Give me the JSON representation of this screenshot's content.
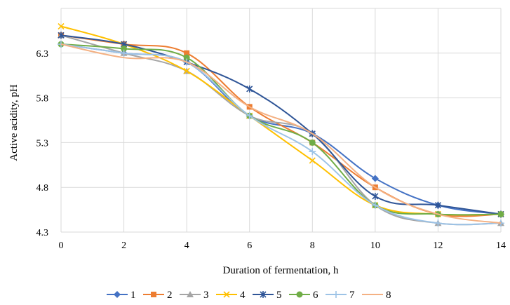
{
  "chart_data": {
    "type": "line",
    "title": "",
    "xlabel": "Duration of fermentation, h",
    "ylabel": "Active acidity, pH",
    "x": [
      0,
      2,
      4,
      6,
      8,
      10,
      12,
      14
    ],
    "xlim": [
      0,
      14
    ],
    "ylim": [
      4.3,
      6.8
    ],
    "x_ticks": [
      "0",
      "2",
      "4",
      "6",
      "8",
      "10",
      "12",
      "14"
    ],
    "y_ticks": [
      "4.3",
      "4.8",
      "5.3",
      "5.8",
      "6.3"
    ],
    "y_tick_values": [
      4.3,
      4.8,
      5.3,
      5.8,
      6.3
    ],
    "grid": true,
    "smooth": true,
    "legend_position": "bottom",
    "series": [
      {
        "name": "1",
        "color": "#4472C4",
        "marker": "diamond",
        "values": [
          6.4,
          6.3,
          6.2,
          5.6,
          5.4,
          4.9,
          4.6,
          4.5
        ]
      },
      {
        "name": "2",
        "color": "#ED7D31",
        "marker": "square",
        "values": [
          6.5,
          6.4,
          6.3,
          5.7,
          5.3,
          4.8,
          4.5,
          4.5
        ]
      },
      {
        "name": "3",
        "color": "#A5A5A5",
        "marker": "triangle",
        "values": [
          6.5,
          6.3,
          6.1,
          5.6,
          5.4,
          4.6,
          4.4,
          4.4
        ]
      },
      {
        "name": "4",
        "color": "#FFC000",
        "marker": "x",
        "values": [
          6.6,
          6.4,
          6.1,
          5.6,
          5.1,
          4.6,
          4.5,
          4.5
        ]
      },
      {
        "name": "5",
        "color": "#2F5597",
        "marker": "star",
        "values": [
          6.5,
          6.4,
          6.2,
          5.9,
          5.4,
          4.7,
          4.6,
          4.5
        ]
      },
      {
        "name": "6",
        "color": "#70AD47",
        "marker": "circle",
        "values": [
          6.4,
          6.35,
          6.25,
          5.6,
          5.3,
          4.6,
          4.5,
          4.5
        ]
      },
      {
        "name": "7",
        "color": "#9DC3E6",
        "marker": "plus",
        "values": [
          6.4,
          6.3,
          6.2,
          5.6,
          5.2,
          4.6,
          4.4,
          4.4
        ]
      },
      {
        "name": "8",
        "color": "#F4B183",
        "marker": "none",
        "values": [
          6.4,
          6.25,
          6.2,
          5.7,
          5.4,
          4.8,
          4.5,
          4.4
        ]
      }
    ]
  }
}
